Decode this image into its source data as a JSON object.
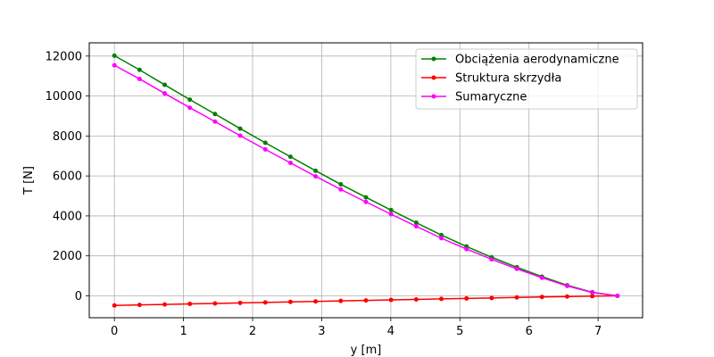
{
  "chart_data": {
    "type": "line",
    "title": "",
    "xlabel": "y [m]",
    "ylabel": "T [N]",
    "xlim": [
      -0.364,
      7.644
    ],
    "ylim": [
      -1096,
      12662
    ],
    "xticks": [
      0,
      1,
      2,
      3,
      4,
      5,
      6,
      7
    ],
    "yticks": [
      0,
      2000,
      4000,
      6000,
      8000,
      10000,
      12000
    ],
    "grid": true,
    "legend_position": "top-right",
    "x": [
      0,
      0.364,
      0.728,
      1.092,
      1.456,
      1.82,
      2.184,
      2.548,
      2.912,
      3.276,
      3.64,
      4.004,
      4.368,
      4.732,
      5.096,
      5.46,
      5.824,
      6.188,
      6.552,
      6.916,
      7.28
    ],
    "series": [
      {
        "name": "Obciążenia aerodynamiczne",
        "color": "#008000",
        "values": [
          12020,
          11310,
          10560,
          9820,
          9100,
          8370,
          7660,
          6960,
          6260,
          5580,
          4930,
          4290,
          3660,
          3040,
          2470,
          1930,
          1430,
          960,
          530,
          180,
          0
        ]
      },
      {
        "name": "Struktura skrzydła",
        "color": "#ff0000",
        "values": [
          -480,
          -455,
          -430,
          -405,
          -380,
          -355,
          -330,
          -305,
          -280,
          -255,
          -230,
          -205,
          -180,
          -155,
          -130,
          -105,
          -80,
          -55,
          -35,
          -15,
          0
        ]
      },
      {
        "name": "Sumaryczne",
        "color": "#ff00ff",
        "values": [
          11540,
          10855,
          10130,
          9415,
          8720,
          8015,
          7330,
          6655,
          5980,
          5325,
          4700,
          4085,
          3480,
          2885,
          2340,
          1825,
          1350,
          905,
          495,
          165,
          0
        ]
      }
    ]
  }
}
